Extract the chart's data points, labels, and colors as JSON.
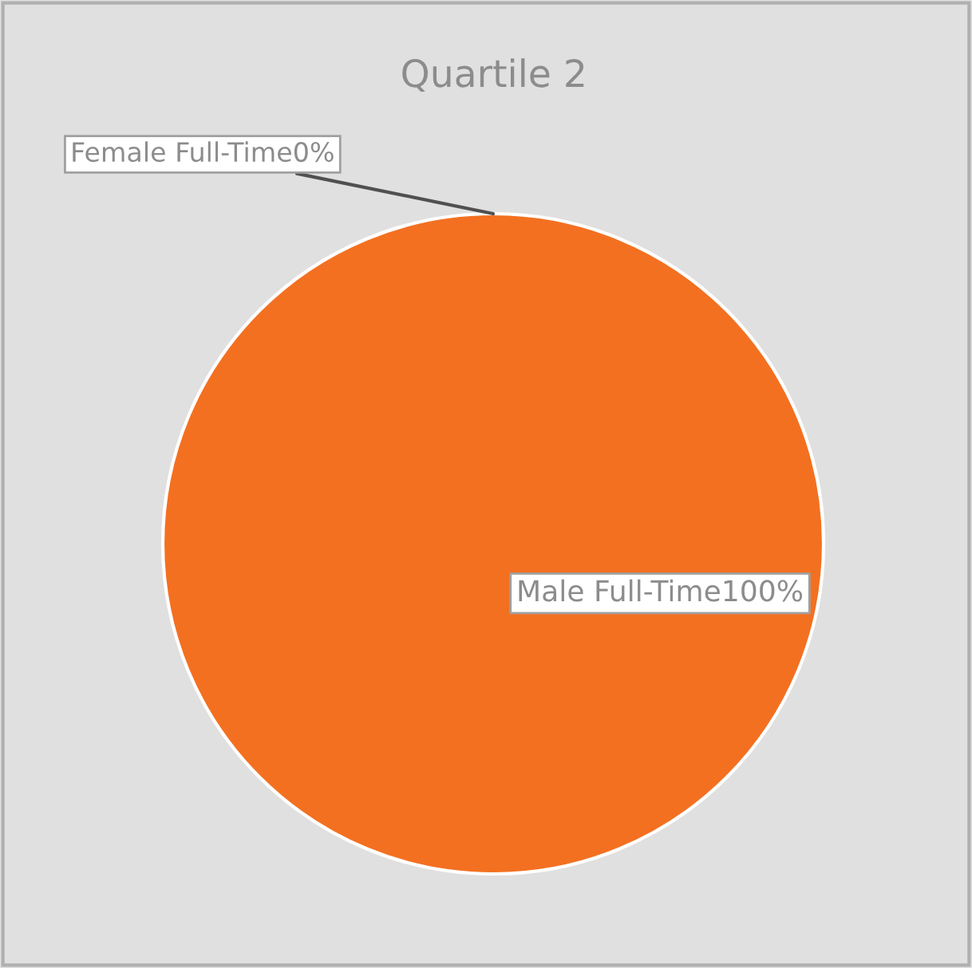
{
  "chart_data": {
    "type": "pie",
    "title": "Quartile 2",
    "categories": [
      "Female Full-Time",
      "Male Full-Time"
    ],
    "values": [
      0,
      100
    ],
    "value_labels": [
      "0%",
      "100%"
    ],
    "colors": [
      "#a5a5a5",
      "#f37021"
    ],
    "legend": false
  }
}
